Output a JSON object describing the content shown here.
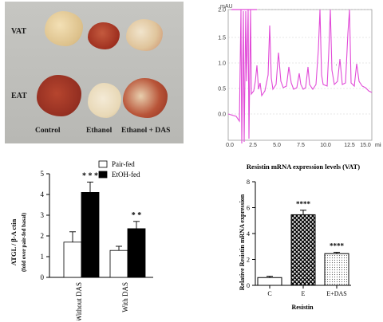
{
  "photo": {
    "row_labels": [
      "VAT",
      "EAT"
    ],
    "col_labels": [
      "Control",
      "Ethanol",
      "Ethanol + DAS"
    ]
  },
  "chromatogram": {
    "y_unit": "mAU",
    "y_ticks": [
      "2.0",
      "1.5",
      "1.0",
      "0.5",
      "0.0"
    ],
    "x_ticks": [
      "0.0",
      "2.5",
      "5.0",
      "7.5",
      "10.0",
      "12.5",
      "15.0"
    ],
    "x_unit": "min",
    "color": "#e14bd8"
  },
  "atgl_chart": {
    "ylabel_line1": "ATGL / β-A ctin",
    "ylabel_line2": "(fold over pair-fed basal)",
    "y_ticks": [
      "0",
      "1",
      "2",
      "3",
      "4",
      "5"
    ],
    "categories": [
      "Without DAS",
      "With DAS"
    ],
    "legend": [
      "Pair-fed",
      "EtOH-fed"
    ],
    "significance": [
      "* * *",
      "* *"
    ],
    "chart_data": {
      "type": "bar",
      "categories": [
        "Without DAS",
        "With DAS"
      ],
      "series": [
        {
          "name": "Pair-fed",
          "values": [
            1.7,
            1.3
          ],
          "errors": [
            0.5,
            0.2
          ]
        },
        {
          "name": "EtOH-fed",
          "values": [
            4.1,
            2.35
          ],
          "errors": [
            0.5,
            0.35
          ]
        }
      ],
      "ylabel": "ATGL / β-A ctin (fold over pair-fed basal)",
      "ylim": [
        0,
        5
      ],
      "legend_position": "top-right"
    }
  },
  "resistin_chart": {
    "title": "Resistin mRNA expression levels (VAT)",
    "ylabel": "Relative Resistin mRNA expression",
    "y_ticks": [
      "0",
      "2",
      "4",
      "6",
      "8"
    ],
    "categories": [
      "C",
      "E",
      "E+DAS"
    ],
    "xlabel": "Resistin",
    "significance": [
      "",
      "****",
      "****"
    ],
    "chart_data": {
      "type": "bar",
      "categories": [
        "C",
        "E",
        "E+DAS"
      ],
      "values": [
        0.6,
        5.45,
        2.45
      ],
      "errors": [
        0.1,
        0.35,
        0.1
      ],
      "title": "Resistin mRNA expression levels (VAT)",
      "xlabel": "Resistin",
      "ylabel": "Relative Resistin mRNA expression",
      "ylim": [
        0,
        8
      ]
    }
  }
}
